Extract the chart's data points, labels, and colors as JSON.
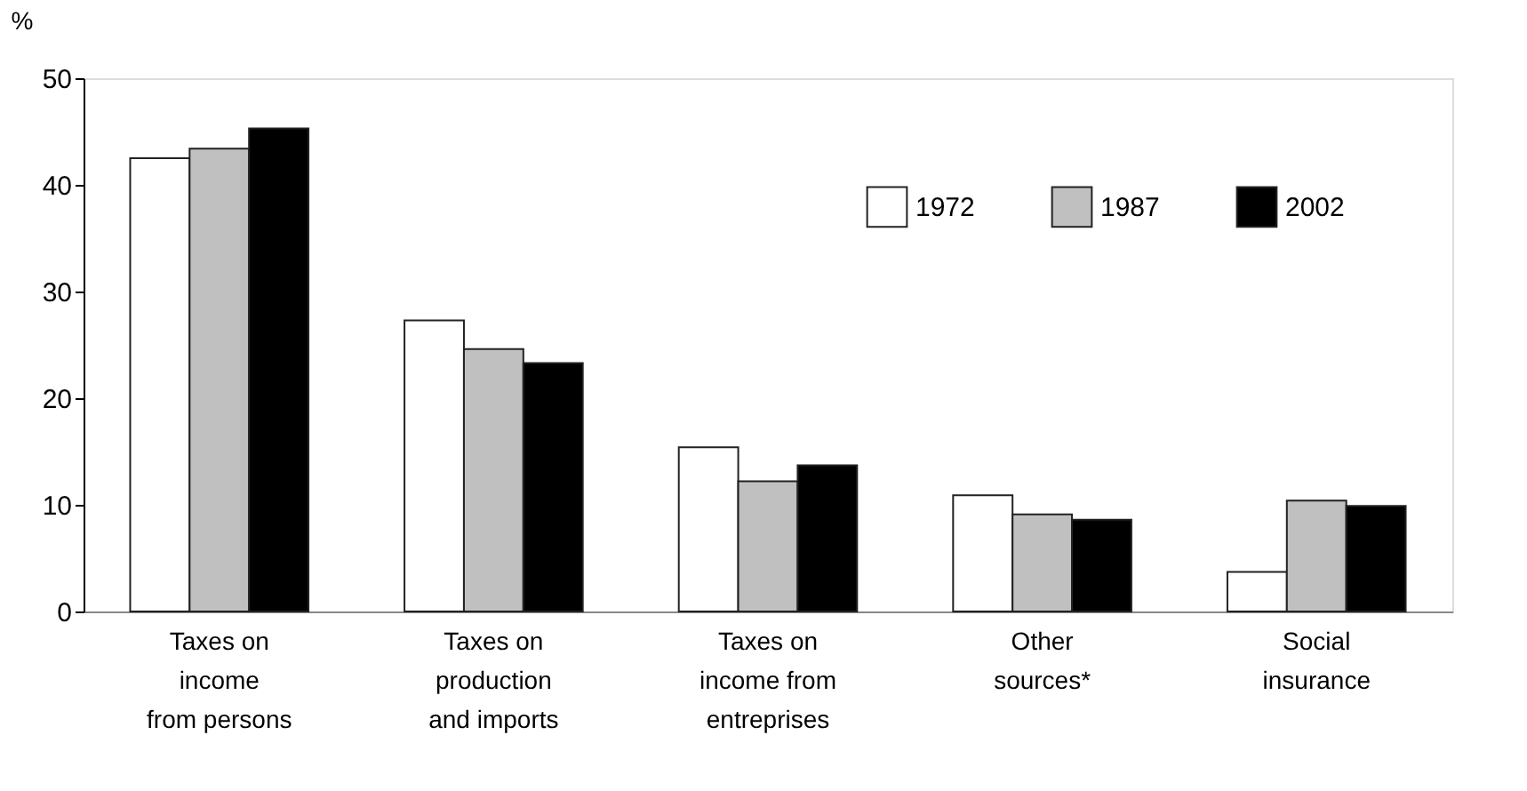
{
  "chart_data": {
    "type": "bar",
    "ylabel": "%",
    "categories": [
      "Taxes on\nincome\nfrom persons",
      "Taxes on\nproduction\nand imports",
      "Taxes on\nincome from\nentreprises",
      "Other\nsources*",
      "Social\ninsurance"
    ],
    "series": [
      {
        "name": "1972",
        "color": "#ffffff",
        "values": [
          42.5,
          27.3,
          15.4,
          10.9,
          3.7
        ]
      },
      {
        "name": "1987",
        "color": "#c0c0c0",
        "values": [
          43.4,
          24.6,
          12.2,
          9.1,
          10.4
        ]
      },
      {
        "name": "2002",
        "color": "#000000",
        "values": [
          45.3,
          23.3,
          13.7,
          8.6,
          9.9
        ]
      }
    ],
    "ylim": [
      0,
      50
    ],
    "yticks": [
      0,
      10,
      20,
      30,
      40,
      50
    ],
    "grid": false,
    "legend": "top right"
  }
}
